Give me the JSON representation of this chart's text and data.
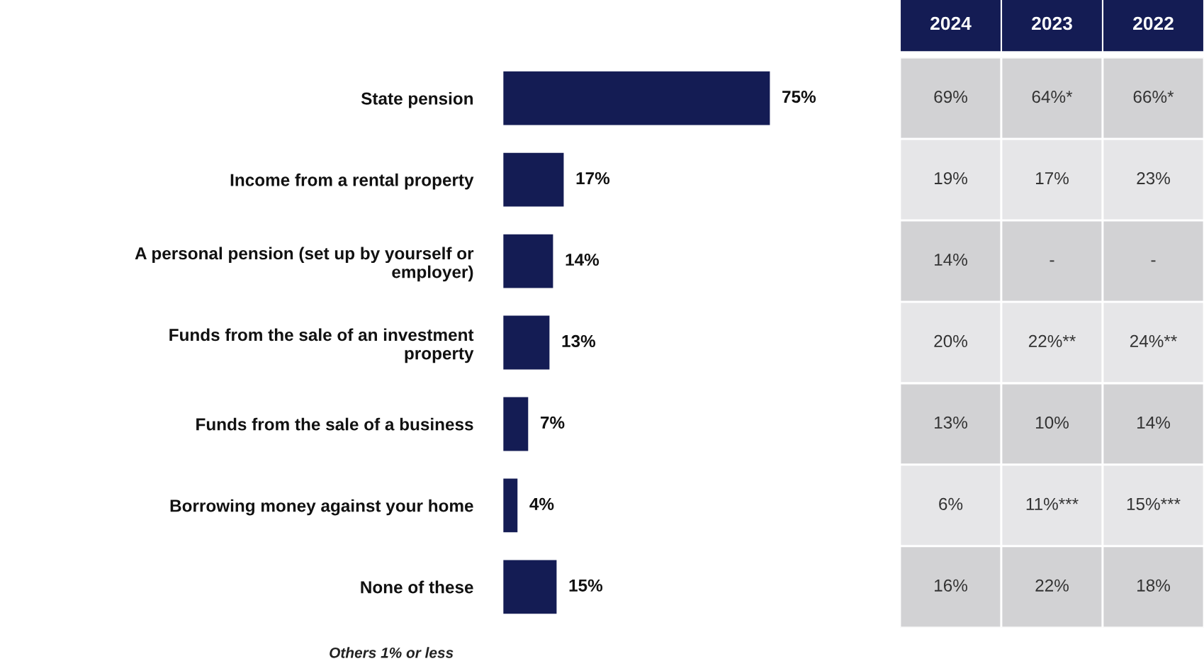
{
  "chart_data": [
    {
      "type": "bar",
      "orientation": "horizontal",
      "categories": [
        "State pension",
        "Income from a rental property",
        "A personal pension (set up by yourself or\nemployer)",
        "Funds from the sale of an investment\nproperty",
        "Funds from the sale of a business",
        "Borrowing money against your home",
        "None of these"
      ],
      "values": [
        75,
        17,
        14,
        13,
        7,
        4,
        15
      ],
      "value_labels": [
        "75%",
        "17%",
        "14%",
        "13%",
        "7%",
        "4%",
        "15%"
      ],
      "color": "#141c54",
      "tick_labels": "y",
      "grid": false,
      "annotations": [
        "Others 1% or less"
      ]
    },
    {
      "type": "heatmap",
      "categories": [
        "2024",
        "2023",
        "2022"
      ],
      "y_categories": [
        null,
        null,
        null,
        null,
        null,
        null,
        null
      ],
      "cells": [
        [
          69,
          64,
          66
        ],
        [
          19,
          17,
          23
        ],
        [
          14,
          null,
          null
        ],
        [
          20,
          22,
          24
        ],
        [
          13,
          10,
          14
        ],
        [
          6,
          11,
          15
        ],
        [
          16,
          22,
          18
        ]
      ],
      "cell_labels": [
        [
          "69%",
          "64%*",
          "66%*"
        ],
        [
          "19%",
          "17%",
          "23%"
        ],
        [
          "14%",
          "-",
          "-"
        ],
        [
          "20%",
          "22%**",
          "24%**"
        ],
        [
          "13%",
          "10%",
          "14%"
        ],
        [
          "6%",
          "11%***",
          "15%***"
        ],
        [
          "16%",
          "22%",
          "18%"
        ]
      ],
      "colors": [
        "#d2d2d4",
        "#e6e6e8",
        "#d2d2d4",
        "#e6e6e8",
        "#d2d2d4",
        "#e6e6e8",
        "#d2d2d4"
      ],
      "color": "#141c54",
      "tick_labels": "x"
    }
  ]
}
